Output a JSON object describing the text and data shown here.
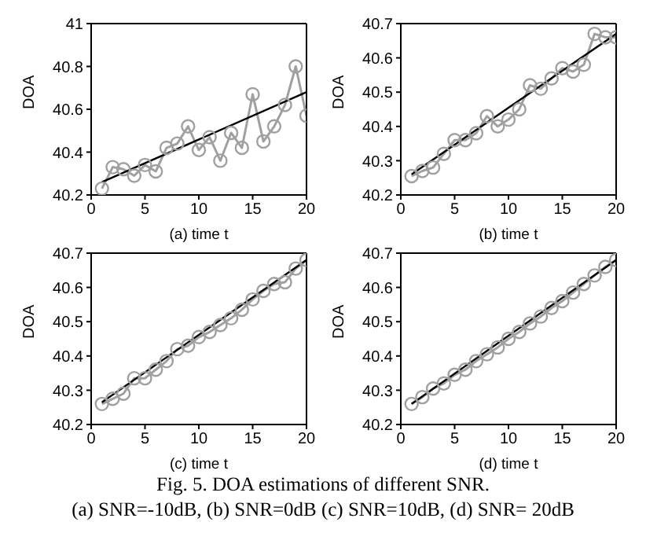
{
  "chart_data": [
    {
      "type": "line",
      "xlabel": "(a) time t",
      "ylabel": "DOA",
      "xlim": [
        0,
        20
      ],
      "xticks": [
        0,
        5,
        10,
        15,
        20
      ],
      "ylim": [
        40.2,
        41
      ],
      "yticks": [
        40.2,
        40.4,
        40.6,
        40.8,
        41
      ],
      "series": [
        {
          "color": "#a0a0a0",
          "marker": "circle",
          "x": [
            1,
            2,
            3,
            4,
            5,
            6,
            7,
            8,
            9,
            10,
            11,
            12,
            13,
            14,
            15,
            16,
            17,
            18,
            19,
            20
          ],
          "values": [
            40.23,
            40.33,
            40.32,
            40.29,
            40.34,
            40.31,
            40.42,
            40.44,
            40.52,
            40.41,
            40.47,
            40.36,
            40.49,
            40.42,
            40.67,
            40.45,
            40.52,
            40.62,
            40.8,
            40.57
          ]
        },
        {
          "color": "#000000",
          "marker": "none",
          "x": [
            1,
            20
          ],
          "values": [
            40.26,
            40.68
          ]
        }
      ]
    },
    {
      "type": "line",
      "xlabel": "(b) time t",
      "ylabel": "DOA",
      "xlim": [
        0,
        20
      ],
      "xticks": [
        0,
        5,
        10,
        15,
        20
      ],
      "ylim": [
        40.2,
        40.7
      ],
      "yticks": [
        40.2,
        40.3,
        40.4,
        40.5,
        40.6,
        40.7
      ],
      "series": [
        {
          "color": "#a0a0a0",
          "marker": "circle",
          "x": [
            1,
            2,
            3,
            4,
            5,
            6,
            7,
            8,
            9,
            10,
            11,
            12,
            13,
            14,
            15,
            16,
            17,
            18,
            19,
            20
          ],
          "values": [
            40.255,
            40.27,
            40.28,
            40.32,
            40.36,
            40.36,
            40.38,
            40.43,
            40.4,
            40.42,
            40.45,
            40.52,
            40.51,
            40.54,
            40.57,
            40.56,
            40.58,
            40.67,
            40.66,
            40.66
          ]
        },
        {
          "color": "#000000",
          "marker": "none",
          "x": [
            1,
            20
          ],
          "values": [
            40.26,
            40.67
          ]
        }
      ]
    },
    {
      "type": "line",
      "xlabel": "(c) time t",
      "ylabel": "DOA",
      "xlim": [
        0,
        20
      ],
      "xticks": [
        0,
        5,
        10,
        15,
        20
      ],
      "ylim": [
        40.2,
        40.7
      ],
      "yticks": [
        40.2,
        40.3,
        40.4,
        40.5,
        40.6,
        40.7
      ],
      "series": [
        {
          "color": "#a0a0a0",
          "marker": "circle",
          "x": [
            1,
            2,
            3,
            4,
            5,
            6,
            7,
            8,
            9,
            10,
            11,
            12,
            13,
            14,
            15,
            16,
            17,
            18,
            19,
            20
          ],
          "values": [
            40.26,
            40.275,
            40.29,
            40.335,
            40.335,
            40.36,
            40.385,
            40.42,
            40.43,
            40.455,
            40.47,
            40.49,
            40.51,
            40.535,
            40.565,
            40.59,
            40.61,
            40.615,
            40.655,
            40.68
          ]
        },
        {
          "color": "#000000",
          "marker": "none",
          "x": [
            1,
            20
          ],
          "values": [
            40.265,
            40.68
          ]
        }
      ]
    },
    {
      "type": "line",
      "xlabel": "(d) time t",
      "ylabel": "DOA",
      "xlim": [
        0,
        20
      ],
      "xticks": [
        0,
        5,
        10,
        15,
        20
      ],
      "ylim": [
        40.2,
        40.7
      ],
      "yticks": [
        40.2,
        40.3,
        40.4,
        40.5,
        40.6,
        40.7
      ],
      "annotations": [
        "Fig. 5. DOA estimations of different SNR.",
        "(a) SNR=-10dB, (b) SNR=0dB (c) SNR=10dB, (d) SNR= 20dB"
      ],
      "series": [
        {
          "color": "#a0a0a0",
          "marker": "circle",
          "x": [
            1,
            2,
            3,
            4,
            5,
            6,
            7,
            8,
            9,
            10,
            11,
            12,
            13,
            14,
            15,
            16,
            17,
            18,
            19,
            20
          ],
          "values": [
            40.26,
            40.28,
            40.305,
            40.32,
            40.345,
            40.36,
            40.385,
            40.405,
            40.425,
            40.45,
            40.47,
            40.495,
            40.515,
            40.54,
            40.56,
            40.585,
            40.61,
            40.635,
            40.66,
            40.68
          ]
        },
        {
          "color": "#000000",
          "marker": "none",
          "x": [
            1,
            20
          ],
          "values": [
            40.26,
            40.68
          ]
        }
      ]
    }
  ]
}
